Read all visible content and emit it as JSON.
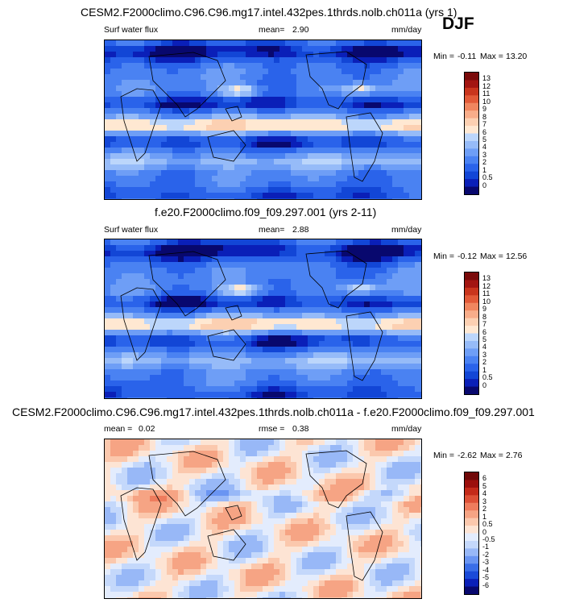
{
  "season": "DJF",
  "colors": {
    "abs_scale": [
      "#08086e",
      "#0a1fb8",
      "#1246d6",
      "#2a63ea",
      "#4a82f2",
      "#6e9ef6",
      "#96bbf8",
      "#bcd6fb",
      "#ffe8d2",
      "#fcd0b2",
      "#f8ad8a",
      "#f0865f",
      "#e25a38",
      "#c9351d",
      "#a31612",
      "#7a0a0a"
    ],
    "diff_scale": [
      "#08086e",
      "#0a1fb8",
      "#1a4ad8",
      "#3a6ee8",
      "#6a95f2",
      "#98b8f7",
      "#c4d8fb",
      "#e3ecfd",
      "#fde4d4",
      "#fbc8ad",
      "#f6a484",
      "#ee7c5d",
      "#dd5036",
      "#c42a19",
      "#9c0f0c",
      "#700808"
    ],
    "land_outline": "#000000"
  },
  "panels": [
    {
      "title": "CESM2.F2000climo.C96.C96.mg17.intel.432pes.1thrds.nolb.ch011a (yrs 1)",
      "left_label": "Surf water flux",
      "mean_label": "mean=",
      "mean_value": "2.90",
      "units": "mm/day",
      "min_label": "Min =",
      "min_value": "-0.11",
      "max_label": "Max =",
      "max_value": "13.20",
      "cbar_labels": [
        "13",
        "12",
        "11",
        "10",
        "9",
        "8",
        "7",
        "6",
        "5",
        "4",
        "3",
        "2",
        "1",
        "0.5",
        "0"
      ]
    },
    {
      "title": "f.e20.F2000climo.f09_f09.297.001 (yrs 2-11)",
      "left_label": "Surf water flux",
      "mean_label": "mean=",
      "mean_value": "2.88",
      "units": "mm/day",
      "min_label": "Min =",
      "min_value": "-0.12",
      "max_label": "Max =",
      "max_value": "12.56",
      "cbar_labels": [
        "13",
        "12",
        "11",
        "10",
        "9",
        "8",
        "7",
        "6",
        "5",
        "4",
        "3",
        "2",
        "1",
        "0.5",
        "0"
      ]
    },
    {
      "title": "CESM2.F2000climo.C96.C96.mg17.intel.432pes.1thrds.nolb.ch011a - f.e20.F2000climo.f09_f09.297.001",
      "mean_label": "mean =",
      "mean_value": "0.02",
      "rmse_label": "rmse =",
      "rmse_value": "0.38",
      "units": "mm/day",
      "min_label": "Min =",
      "min_value": "-2.62",
      "max_label": "Max =",
      "max_value": "2.76",
      "cbar_labels": [
        "6",
        "5",
        "4",
        "3",
        "2",
        "1",
        "0.5",
        "0",
        "-0.5",
        "-1",
        "-2",
        "-3",
        "-4",
        "-5",
        "-6"
      ]
    }
  ],
  "chart_data": [
    {
      "type": "heatmap",
      "title": "CESM2.F2000climo.C96.C96.mg17.intel.432pes.1thrds.nolb.ch011a (yrs 1)",
      "variable": "Surf water flux",
      "units": "mm/day",
      "mean": 2.9,
      "min": -0.11,
      "max": 13.2,
      "levels": [
        0,
        0.5,
        1,
        2,
        3,
        4,
        5,
        6,
        7,
        8,
        9,
        10,
        11,
        12,
        13
      ]
    },
    {
      "type": "heatmap",
      "title": "f.e20.F2000climo.f09_f09.297.001 (yrs 2-11)",
      "variable": "Surf water flux",
      "units": "mm/day",
      "mean": 2.88,
      "min": -0.12,
      "max": 12.56,
      "levels": [
        0,
        0.5,
        1,
        2,
        3,
        4,
        5,
        6,
        7,
        8,
        9,
        10,
        11,
        12,
        13
      ]
    },
    {
      "type": "heatmap",
      "title": "CESM2.F2000climo.C96.C96.mg17.intel.432pes.1thrds.nolb.ch011a - f.e20.F2000climo.f09_f09.297.001",
      "units": "mm/day",
      "mean": 0.02,
      "rmse": 0.38,
      "min": -2.62,
      "max": 2.76,
      "levels": [
        -6,
        -5,
        -4,
        -3,
        -2,
        -1,
        -0.5,
        0,
        0.5,
        1,
        2,
        3,
        4,
        5,
        6
      ]
    }
  ]
}
